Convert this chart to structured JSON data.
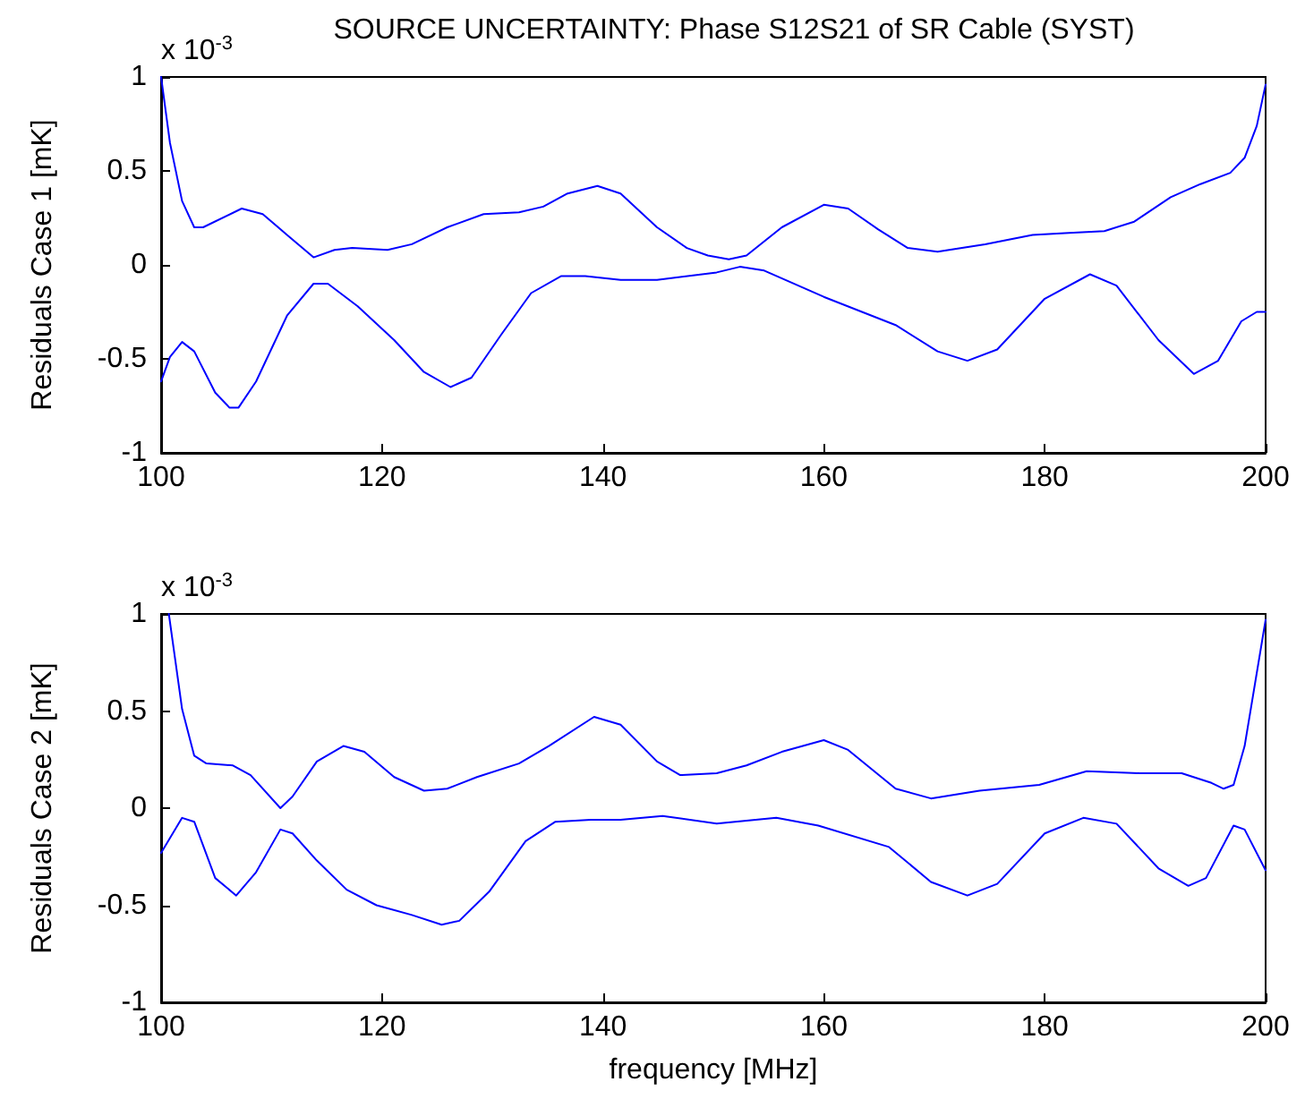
{
  "chart_data": [
    {
      "type": "line",
      "title": "SOURCE UNCERTAINTY: Phase S12S21 of SR Cable (SYST)",
      "ylabel": "Residuals Case 1 [mK]",
      "annotations": [
        "x 10$^{-3}$"
      ],
      "xlim": [
        100,
        200
      ],
      "xticks": [
        100,
        120,
        140,
        160,
        180,
        200
      ],
      "ylim": [
        -1,
        1
      ],
      "yticks": [
        -1,
        -0.5,
        0,
        0.5,
        1
      ],
      "grid": false,
      "series": [
        {
          "color": "#0000ff",
          "x": [
            100,
            100.8,
            101.9,
            103.0,
            103.8,
            107.3,
            109.2,
            111.4,
            113.8,
            115.7,
            117.3,
            120.5,
            122.7,
            125.9,
            129.2,
            132.4,
            134.6,
            136.8,
            139.5,
            141.6,
            144.9,
            147.6,
            149.5,
            151.4,
            153.0,
            156.2,
            160,
            162.2,
            164.9,
            167.6,
            170.3,
            174.6,
            178.9,
            182.2,
            185.4,
            188.1,
            191.4,
            194.1,
            196.8,
            198.1,
            199.2,
            200
          ],
          "values": [
            1.0,
            0.65,
            0.34,
            0.2,
            0.2,
            0.3,
            0.27,
            0.16,
            0.04,
            0.08,
            0.09,
            0.08,
            0.11,
            0.2,
            0.27,
            0.28,
            0.31,
            0.38,
            0.42,
            0.38,
            0.2,
            0.09,
            0.05,
            0.03,
            0.05,
            0.2,
            0.32,
            0.3,
            0.19,
            0.09,
            0.07,
            0.11,
            0.16,
            0.17,
            0.18,
            0.23,
            0.36,
            0.43,
            0.49,
            0.57,
            0.74,
            0.96
          ]
        },
        {
          "color": "#0000ff",
          "x": [
            100,
            100.8,
            101.9,
            103.0,
            104.9,
            106.2,
            107.0,
            108.6,
            111.4,
            113.8,
            115.1,
            117.8,
            121.1,
            123.8,
            126.2,
            128.1,
            130.8,
            133.5,
            136.2,
            138.4,
            141.6,
            144.9,
            150.3,
            152.4,
            154.6,
            160,
            166.5,
            170.3,
            173.0,
            175.7,
            180,
            184.1,
            186.5,
            190.3,
            193.5,
            195.7,
            197.8,
            199.2,
            200
          ],
          "values": [
            -0.62,
            -0.49,
            -0.41,
            -0.46,
            -0.68,
            -0.76,
            -0.76,
            -0.62,
            -0.27,
            -0.1,
            -0.1,
            -0.22,
            -0.4,
            -0.57,
            -0.65,
            -0.6,
            -0.37,
            -0.15,
            -0.06,
            -0.06,
            -0.08,
            -0.08,
            -0.04,
            -0.01,
            -0.03,
            -0.17,
            -0.32,
            -0.46,
            -0.51,
            -0.45,
            -0.18,
            -0.05,
            -0.11,
            -0.4,
            -0.58,
            -0.51,
            -0.3,
            -0.25,
            -0.25
          ]
        }
      ]
    },
    {
      "type": "line",
      "xlabel": "frequency [MHz]",
      "ylabel": "Residuals Case 2 [mK]",
      "annotations": [
        "x 10$^{-3}$"
      ],
      "xlim": [
        100,
        200
      ],
      "xticks": [
        100,
        120,
        140,
        160,
        180,
        200
      ],
      "ylim": [
        -1,
        1
      ],
      "yticks": [
        -1,
        -0.5,
        0,
        0.5,
        1
      ],
      "grid": false,
      "series": [
        {
          "color": "#0000ff",
          "x": [
            100.7,
            101.9,
            103,
            104.1,
            106.5,
            108.1,
            110.8,
            111.9,
            114.1,
            116.5,
            118.4,
            121.1,
            123.8,
            125.9,
            128.6,
            132.4,
            135.1,
            139.2,
            141.6,
            144.9,
            147.0,
            150.3,
            153,
            156.2,
            160,
            162.2,
            166.5,
            169.7,
            174.1,
            179.5,
            183.8,
            188.6,
            192.4,
            195.1,
            196.2,
            197.1,
            198.1,
            200
          ],
          "values": [
            1.0,
            0.51,
            0.27,
            0.23,
            0.22,
            0.17,
            0.0,
            0.06,
            0.24,
            0.32,
            0.29,
            0.16,
            0.09,
            0.1,
            0.16,
            0.23,
            0.32,
            0.47,
            0.43,
            0.24,
            0.17,
            0.18,
            0.22,
            0.29,
            0.35,
            0.3,
            0.1,
            0.05,
            0.09,
            0.12,
            0.19,
            0.18,
            0.18,
            0.13,
            0.1,
            0.12,
            0.32,
            0.97
          ]
        },
        {
          "color": "#0000ff",
          "x": [
            100,
            101.9,
            103,
            104.9,
            106.8,
            108.6,
            110.8,
            111.9,
            114.1,
            116.8,
            119.5,
            122.7,
            125.4,
            127.0,
            129.7,
            133,
            135.7,
            138.9,
            141.6,
            145.4,
            150.3,
            155.7,
            159.5,
            165.9,
            169.7,
            173,
            175.7,
            180,
            183.5,
            186.5,
            190.3,
            193,
            194.6,
            197.1,
            198.1,
            200
          ],
          "values": [
            -0.23,
            -0.05,
            -0.07,
            -0.36,
            -0.45,
            -0.33,
            -0.11,
            -0.13,
            -0.27,
            -0.42,
            -0.5,
            -0.55,
            -0.6,
            -0.58,
            -0.43,
            -0.17,
            -0.07,
            -0.06,
            -0.06,
            -0.04,
            -0.08,
            -0.05,
            -0.09,
            -0.2,
            -0.38,
            -0.45,
            -0.39,
            -0.13,
            -0.05,
            -0.08,
            -0.31,
            -0.4,
            -0.36,
            -0.09,
            -0.11,
            -0.32
          ]
        }
      ]
    }
  ]
}
